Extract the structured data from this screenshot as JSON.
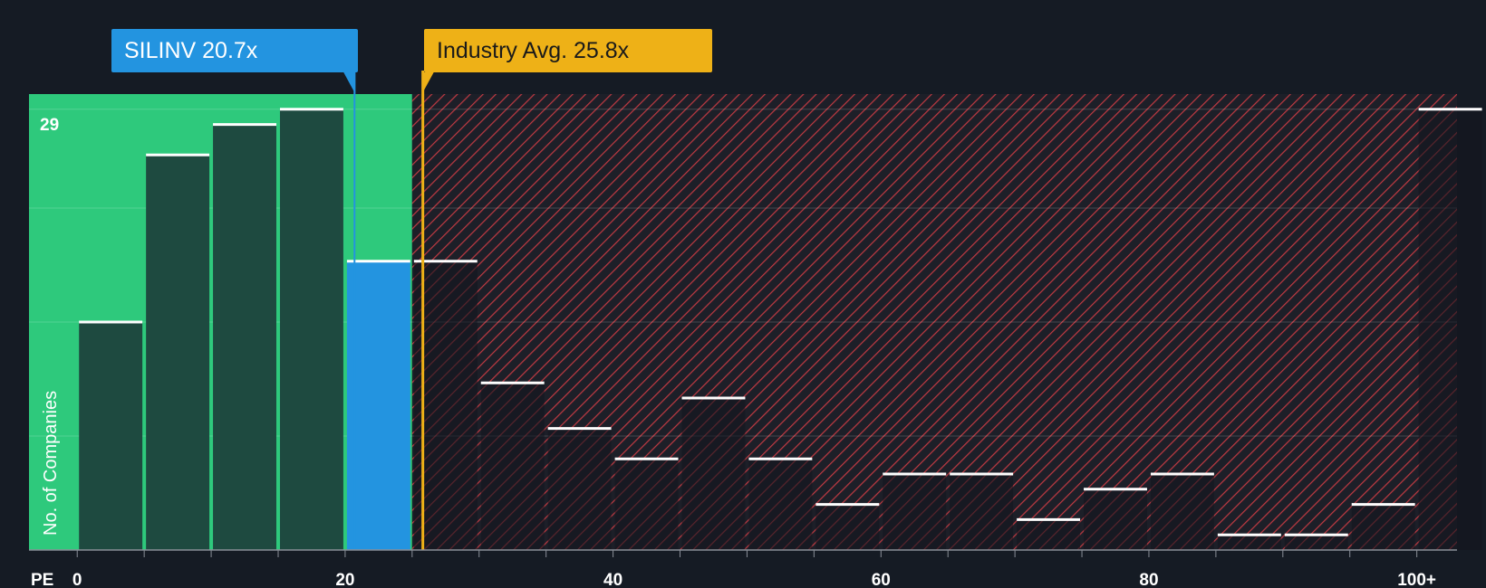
{
  "chart_data": {
    "type": "bar",
    "xlabel": "PE",
    "ylabel": "No. of Companies",
    "x_ticks": [
      "0",
      "20",
      "40",
      "60",
      "80",
      "100+"
    ],
    "y_max_label": "29",
    "bin_width": 5,
    "bins": [
      {
        "start": 0,
        "count": 15
      },
      {
        "start": 5,
        "count": 26
      },
      {
        "start": 10,
        "count": 28
      },
      {
        "start": 15,
        "count": 29
      },
      {
        "start": 20,
        "count": 19
      },
      {
        "start": 25,
        "count": 19
      },
      {
        "start": 30,
        "count": 11
      },
      {
        "start": 35,
        "count": 8
      },
      {
        "start": 40,
        "count": 6
      },
      {
        "start": 45,
        "count": 10
      },
      {
        "start": 50,
        "count": 6
      },
      {
        "start": 55,
        "count": 3
      },
      {
        "start": 60,
        "count": 5
      },
      {
        "start": 65,
        "count": 5
      },
      {
        "start": 70,
        "count": 2
      },
      {
        "start": 75,
        "count": 4
      },
      {
        "start": 80,
        "count": 5
      },
      {
        "start": 85,
        "count": 1
      },
      {
        "start": 90,
        "count": 1
      },
      {
        "start": 95,
        "count": 3
      },
      {
        "start": 100,
        "count": 29
      }
    ],
    "ylim": [
      0,
      30
    ],
    "xlim": [
      -3.6,
      103
    ],
    "company": {
      "label": "SILINV 20.7x",
      "value": 20.7
    },
    "industry": {
      "label": "Industry Avg. 25.8x",
      "value": 25.8
    },
    "fair_zone_end": 25,
    "colors": {
      "background": "#151b24",
      "fair_zone": "#2ec97c",
      "bar_fair": "#1e4a40",
      "company": "#2394e0",
      "industry": "#eeb117",
      "overvalued_hatch": "#c03a42"
    }
  }
}
